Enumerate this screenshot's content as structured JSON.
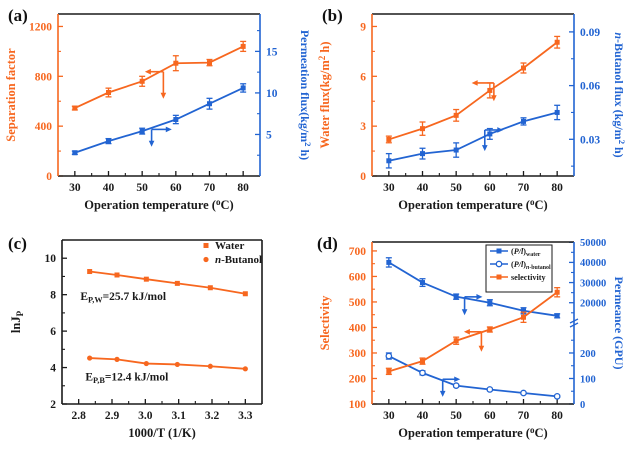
{
  "figure": {
    "colors": {
      "orange": "#f7671f",
      "blue": "#2264d2",
      "black": "#1a1a1a",
      "white": "#ffffff"
    }
  },
  "chart_data": [
    {
      "id": "a",
      "label": "(a)",
      "type": "line",
      "x": {
        "label": "Operation temperature (^{o}C)",
        "min": 25,
        "max": 85,
        "tick_values": [
          30,
          40,
          50,
          60,
          70,
          80
        ],
        "tick_labels": [
          "30",
          "40",
          "50",
          "60",
          "70",
          "80"
        ],
        "minor_step": 5
      },
      "y_left": {
        "label": "Separation factor",
        "color": "orange",
        "min": 0,
        "max": 1300,
        "tick_values": [
          0,
          400,
          800,
          1200
        ],
        "tick_labels": [
          "0",
          "400",
          "800",
          "1200"
        ],
        "minor_step": 200
      },
      "y_right": {
        "label": "Permeation flux(kg/m^{2} h)",
        "color": "blue",
        "min": 0,
        "max": 19.5,
        "tick_values": [
          5,
          10,
          15
        ],
        "tick_labels": [
          "5",
          "10",
          "15"
        ],
        "minor_step": 2.5
      },
      "series": [
        {
          "name": "separation-factor",
          "color": "orange",
          "marker": "square",
          "axis": "left",
          "x": [
            30,
            40,
            50,
            60,
            70,
            80
          ],
          "y": [
            545,
            670,
            760,
            905,
            910,
            1040
          ],
          "err": [
            15,
            35,
            40,
            60,
            25,
            40
          ]
        },
        {
          "name": "permeation-flux",
          "color": "blue",
          "marker": "square",
          "axis": "right",
          "x": [
            30,
            40,
            50,
            60,
            70,
            80
          ],
          "y": [
            2.8,
            4.2,
            5.4,
            6.8,
            8.7,
            10.6
          ],
          "err": [
            0.2,
            0.3,
            0.35,
            0.5,
            0.65,
            0.5
          ]
        }
      ],
      "arrows": [
        {
          "color": "orange",
          "corner": [
            56.3,
            837
          ],
          "h_to": 50.8,
          "v_to": 620
        },
        {
          "color": "blue",
          "corner": [
            52.8,
            374
          ],
          "h_to": 58.8,
          "v_to": 235
        }
      ]
    },
    {
      "id": "b",
      "label": "(b)",
      "type": "line",
      "x": {
        "label": "Operation temperature (^{o}C)",
        "min": 25,
        "max": 85,
        "tick_values": [
          30,
          40,
          50,
          60,
          70,
          80
        ],
        "tick_labels": [
          "30",
          "40",
          "50",
          "60",
          "70",
          "80"
        ],
        "minor_step": 5
      },
      "y_left": {
        "label": "Water flux(kg/m^{2} h)",
        "color": "orange",
        "min": 0,
        "max": 9.75,
        "tick_values": [
          0,
          3,
          6,
          9
        ],
        "tick_labels": [
          "0",
          "3",
          "6",
          "9"
        ],
        "minor_step": 1.5
      },
      "y_right": {
        "label": "*n*-Butanol flux (kg/m^{2} h)",
        "color": "blue",
        "min": 0.0095,
        "max": 0.1,
        "tick_values": [
          0.03,
          0.06,
          0.09
        ],
        "tick_labels": [
          "0.03",
          "0.06",
          "0.09"
        ],
        "minor_step": 0.015
      },
      "series": [
        {
          "name": "water-flux",
          "color": "orange",
          "marker": "square",
          "axis": "left",
          "x": [
            30,
            40,
            50,
            60,
            70,
            80
          ],
          "y": [
            2.2,
            2.85,
            3.65,
            5.15,
            6.5,
            8.05
          ],
          "err": [
            0.2,
            0.4,
            0.35,
            0.45,
            0.3,
            0.35
          ]
        },
        {
          "name": "n-butanol-flux",
          "color": "blue",
          "marker": "square",
          "axis": "right",
          "x": [
            30,
            40,
            50,
            60,
            70,
            80
          ],
          "y": [
            0.018,
            0.022,
            0.024,
            0.033,
            0.04,
            0.045
          ],
          "err": [
            0.004,
            0.003,
            0.004,
            0.003,
            0.002,
            0.004
          ]
        }
      ],
      "arrows": [
        {
          "color": "orange",
          "corner": [
            61.2,
            5.6
          ],
          "h_to": 54.6,
          "v_to": 4.5
        },
        {
          "color": "blue",
          "corner": [
            58.5,
            2.77
          ],
          "h_to": 64.0,
          "v_to": 1.5
        }
      ]
    },
    {
      "id": "c",
      "label": "(c)",
      "type": "line",
      "x": {
        "label": "1000/T (1/K)",
        "min": 2.75,
        "max": 3.35,
        "tick_values": [
          2.8,
          2.9,
          3.0,
          3.1,
          3.2,
          3.3
        ],
        "tick_labels": [
          "2.8",
          "2.9",
          "3.0",
          "3.1",
          "3.2",
          "3.3"
        ],
        "minor_step": 0.05
      },
      "y_left": {
        "label": "lnJ_{P}",
        "color": "black",
        "min": 2,
        "max": 11,
        "tick_values": [
          2,
          4,
          6,
          8,
          10
        ],
        "tick_labels": [
          "2",
          "4",
          "6",
          "8",
          "10"
        ],
        "minor_step": 1
      },
      "series": [
        {
          "name": "water",
          "color": "orange",
          "marker": "square",
          "axis": "left",
          "x": [
            2.833,
            2.915,
            3.003,
            3.096,
            3.195,
            3.3
          ],
          "y": [
            9.27,
            9.08,
            8.85,
            8.62,
            8.38,
            8.05
          ],
          "err": [
            0,
            0,
            0,
            0,
            0,
            0
          ]
        },
        {
          "name": "n-butanol",
          "color": "orange",
          "marker": "circle",
          "axis": "left",
          "x": [
            2.833,
            2.915,
            3.003,
            3.096,
            3.195,
            3.3
          ],
          "y": [
            4.52,
            4.45,
            4.22,
            4.17,
            4.07,
            3.93
          ],
          "err": [
            0,
            0,
            0,
            0,
            0,
            0
          ]
        }
      ],
      "legend": {
        "items": [
          {
            "label": "Water",
            "marker": "square",
            "color": "orange",
            "line": false
          },
          {
            "label": "*n*-Butanol",
            "marker": "circle",
            "color": "orange",
            "line": false
          }
        ]
      },
      "annotations": [
        {
          "x": 2.805,
          "y": 7.72,
          "text": "E_{P,W}=25.7 kJ/mol"
        },
        {
          "x": 2.82,
          "y": 3.28,
          "text": "E_{P,B}=12.4 kJ/mol"
        }
      ]
    },
    {
      "id": "d",
      "label": "(d)",
      "type": "line",
      "x": {
        "label": "Operation temperature (^{o}C)",
        "min": 25,
        "max": 85,
        "tick_values": [
          30,
          40,
          50,
          60,
          70,
          80
        ],
        "tick_labels": [
          "30",
          "40",
          "50",
          "60",
          "70",
          "80"
        ],
        "minor_step": 5
      },
      "y_left": {
        "label": "Selectivity",
        "color": "orange",
        "min": 100,
        "max": 735,
        "tick_values": [
          100,
          200,
          300,
          400,
          500,
          600,
          700
        ],
        "tick_labels": [
          "100",
          "200",
          "300",
          "400",
          "500",
          "600",
          "700"
        ],
        "minor_step": 50
      },
      "y_right": {
        "label": "Permeance (GPU)",
        "color": "blue",
        "broken": true,
        "upper": {
          "tick_values": [
            50000,
            40000,
            30000,
            20000
          ],
          "tick_labels": [
            "50000",
            "40000",
            "30000",
            "20000"
          ],
          "minor_step": 5000
        },
        "lower": {
          "tick_values": [
            200,
            100,
            0
          ],
          "tick_labels": [
            "200",
            "100",
            "0"
          ],
          "minor_step": 50
        }
      },
      "series": [
        {
          "name": "water-permeance",
          "color": "blue",
          "marker": "square",
          "axis": "right",
          "x": [
            30,
            40,
            50,
            60,
            70,
            80
          ],
          "y": [
            40000,
            30000,
            23000,
            20000,
            16000,
            13500
          ],
          "err": [
            2300,
            1900,
            1300,
            1500,
            1500,
            1000
          ]
        },
        {
          "name": "n-butanol-permeance",
          "color": "blue",
          "marker": "circle-open",
          "axis": "right",
          "x": [
            30,
            40,
            50,
            60,
            70,
            80
          ],
          "y": [
            188,
            122,
            72,
            57,
            43,
            30
          ],
          "err": [
            12,
            8,
            5,
            4,
            4,
            4
          ]
        },
        {
          "name": "selectivity",
          "color": "orange",
          "marker": "square",
          "axis": "left",
          "x": [
            30,
            40,
            50,
            60,
            70,
            80
          ],
          "y": [
            228,
            268,
            348,
            392,
            440,
            538
          ],
          "err": [
            12,
            12,
            14,
            10,
            20,
            18
          ]
        }
      ],
      "legend": {
        "items": [
          {
            "label": "(*P/l*)_{water}",
            "marker": "square",
            "color": "blue",
            "line": true
          },
          {
            "label": "(*P/l*)_{*n*-butanol}",
            "marker": "circle-open",
            "color": "blue",
            "line": true
          },
          {
            "label": "selectivity",
            "marker": "square",
            "color": "orange",
            "line": true
          }
        ]
      },
      "arrows": [
        {
          "color": "blue",
          "corner": [
            52.5,
            520
          ],
          "h_to": 57.8,
          "v_to": 448
        },
        {
          "color": "orange",
          "corner": [
            57.5,
            383
          ],
          "h_to": 52.3,
          "v_to": 305
        },
        {
          "color": "blue",
          "corner": [
            46.0,
            197
          ],
          "h_to": 51.2,
          "v_to": 128
        }
      ]
    }
  ]
}
